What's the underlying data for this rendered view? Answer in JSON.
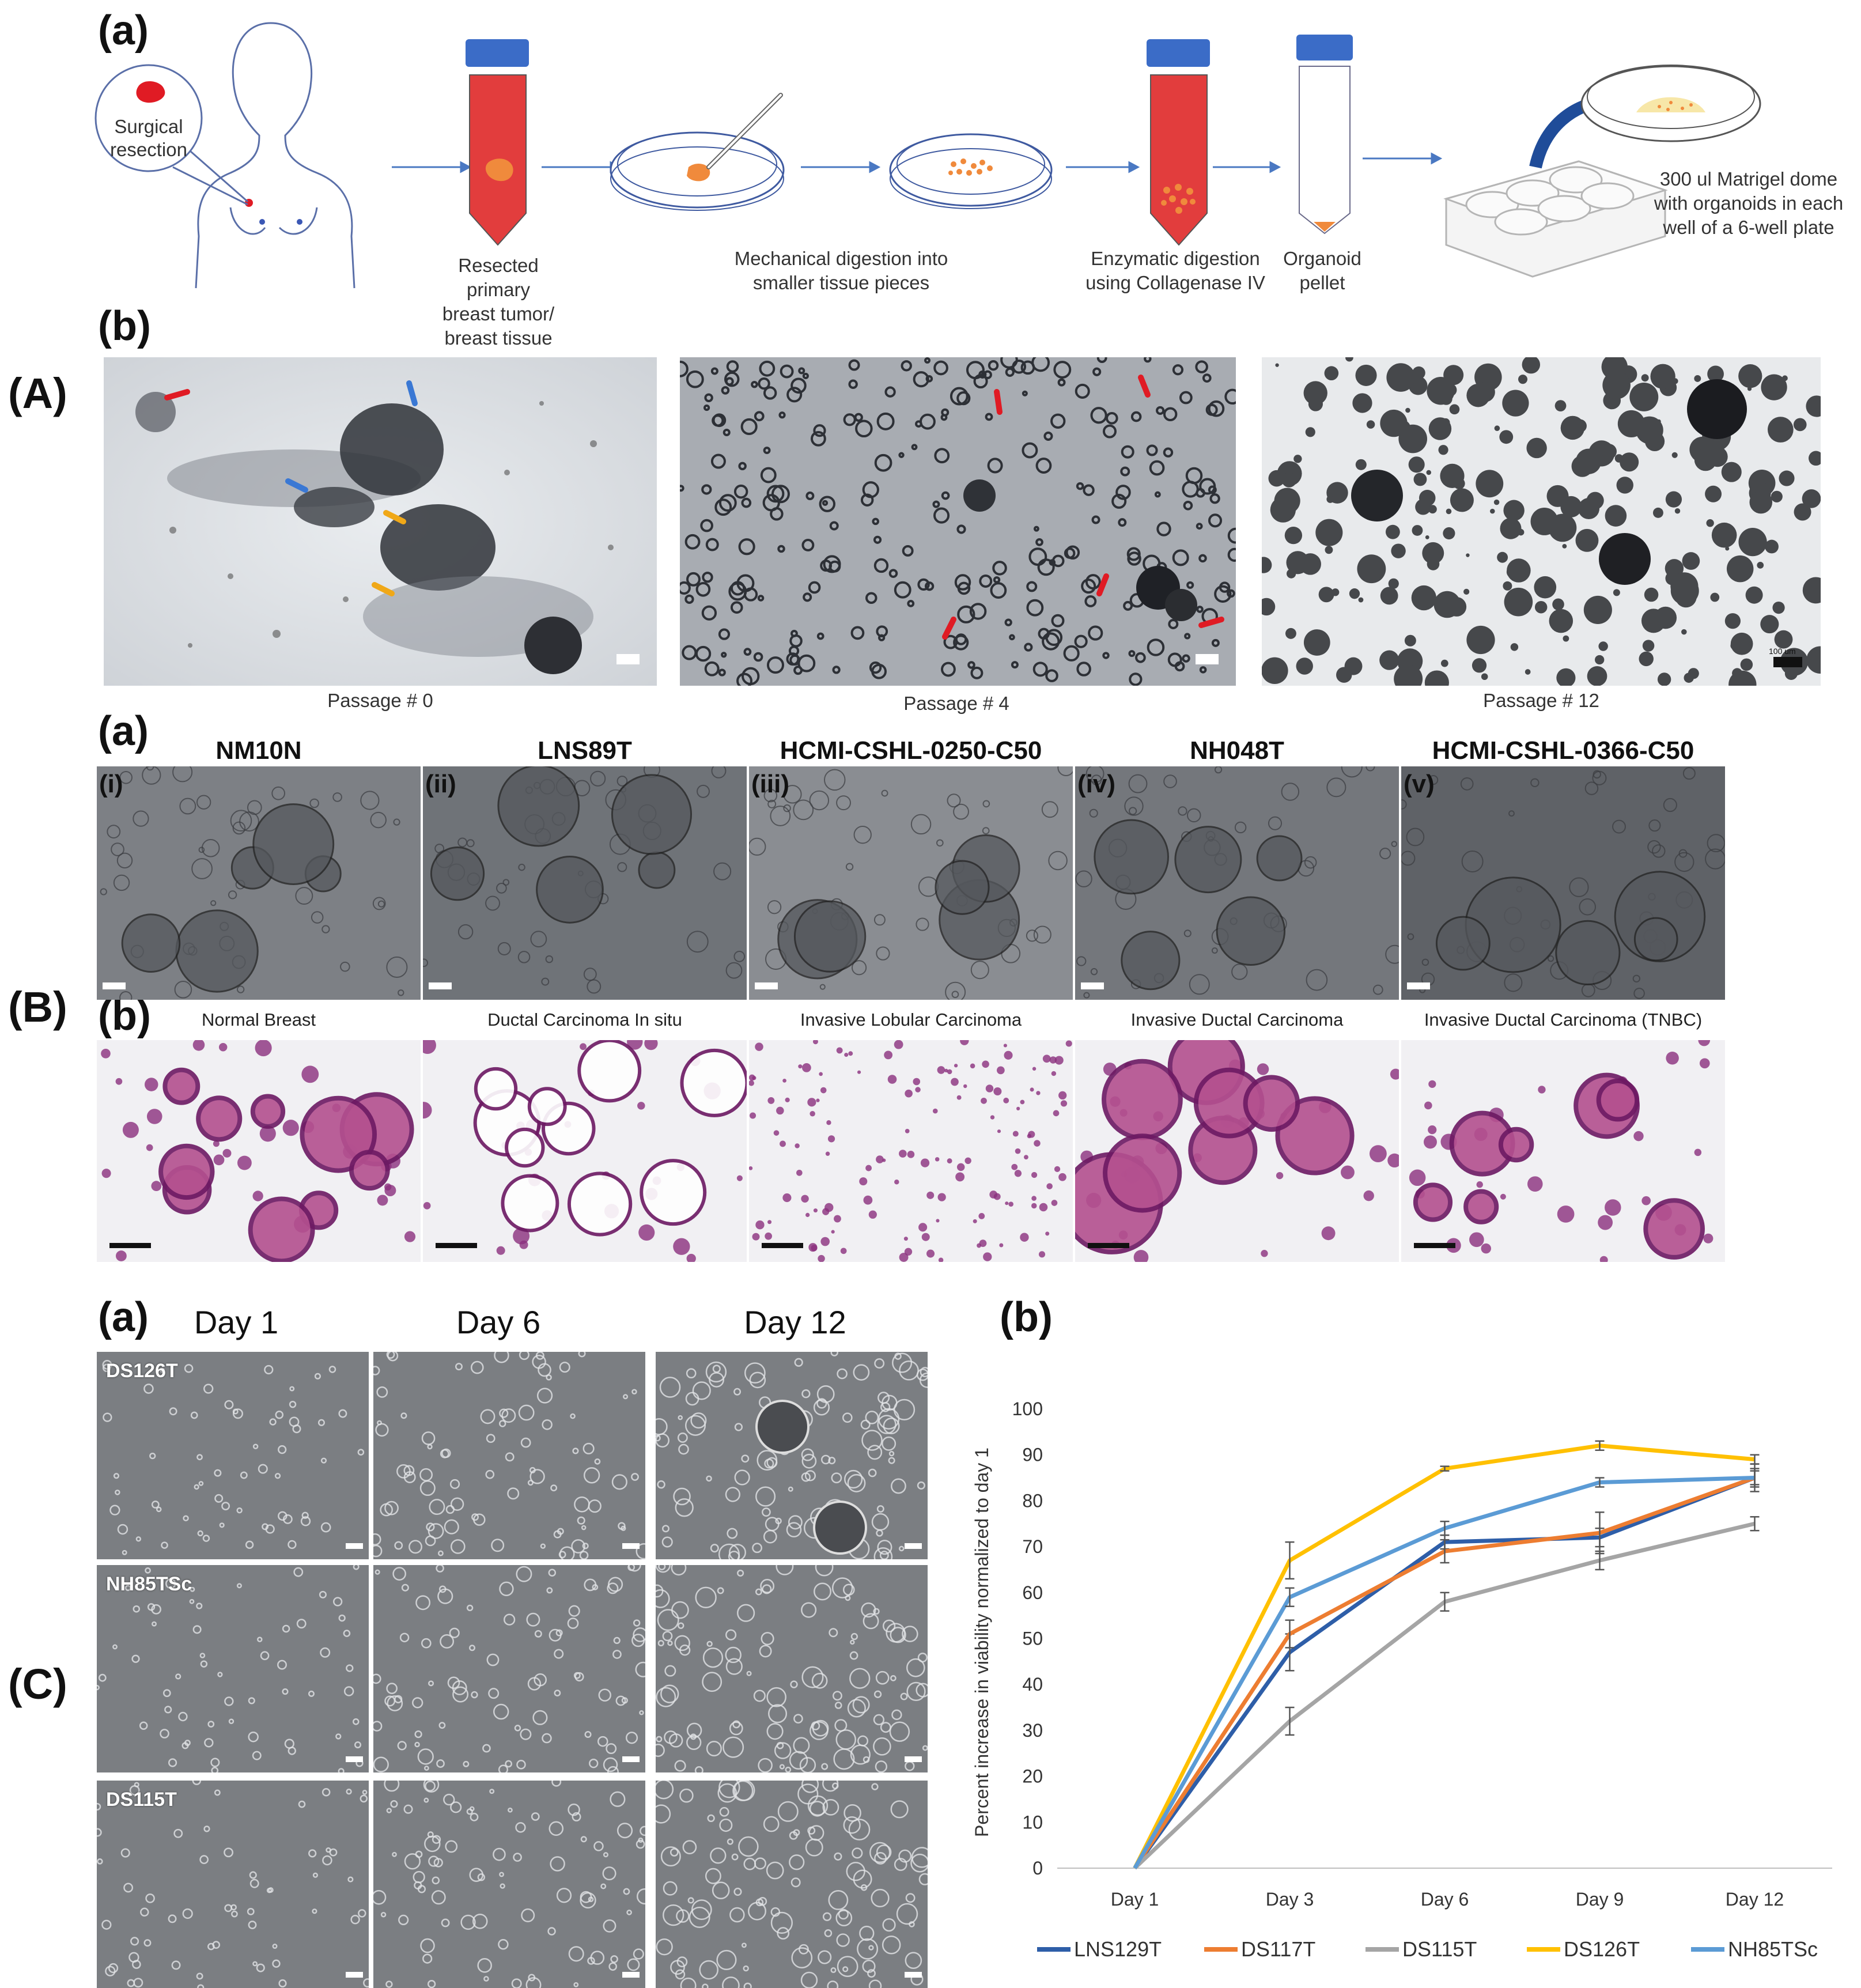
{
  "sectionA": {
    "letter": "(A)",
    "panel_a": {
      "letter": "(a)",
      "circle_text": "Surgical resection",
      "tube1_caption": [
        "Resected",
        "primary",
        "breast tumor/",
        "breast tissue"
      ],
      "mech_caption": [
        "Mechanical digestion into",
        "smaller tissue pieces"
      ],
      "enz_caption": [
        "Enzymatic digestion",
        "using Collagenase IV"
      ],
      "pellet_caption": [
        "Organoid",
        "pellet"
      ],
      "dome_caption": [
        "300 ul Matrigel dome",
        "with organoids in each",
        "well of a 6-well plate"
      ]
    },
    "panel_b": {
      "letter": "(b)",
      "captions": [
        "Passage # 0",
        "Passage # 4",
        "Passage # 12"
      ],
      "scale_text": "100 um"
    }
  },
  "sectionB": {
    "letter": "(B)",
    "panel_a_letter": "(a)",
    "panel_b_letter": "(b)",
    "columns": [
      {
        "roman": "(i)",
        "name": "NM10N",
        "tissue": "Normal Breast"
      },
      {
        "roman": "(ii)",
        "name": "LNS89T",
        "tissue": "Ductal Carcinoma In situ"
      },
      {
        "roman": "(iii)",
        "name": "HCMI-CSHL-0250-C50",
        "tissue": "Invasive Lobular Carcinoma"
      },
      {
        "roman": "(iv)",
        "name": "NH048T",
        "tissue": "Invasive Ductal Carcinoma"
      },
      {
        "roman": "(v)",
        "name": "HCMI-CSHL-0366-C50",
        "tissue": "Invasive Ductal Carcinoma (TNBC)"
      }
    ]
  },
  "sectionC": {
    "letter": "(C)",
    "panel_a_letter": "(a)",
    "panel_b_letter": "(b)",
    "days": [
      "Day 1",
      "Day 6",
      "Day 12"
    ],
    "rows": [
      "DS126T",
      "NH85TSc",
      "DS115T"
    ]
  },
  "chart_data": {
    "type": "line",
    "categories": [
      "Day 1",
      "Day 3",
      "Day 6",
      "Day 9",
      "Day 12"
    ],
    "ylabel": "Percent increase in viability normalized to day 1",
    "xlabel": "",
    "ylim": [
      0,
      100
    ],
    "yticks": [
      0,
      10,
      20,
      30,
      40,
      50,
      60,
      70,
      80,
      90,
      100
    ],
    "grid": false,
    "legend_position": "bottom",
    "series": [
      {
        "name": "LNS129T",
        "color": "#2e5ea8",
        "values": [
          0,
          47,
          71,
          72,
          85
        ],
        "errors": [
          0,
          4,
          1.5,
          2,
          2
        ]
      },
      {
        "name": "DS117T",
        "color": "#ed7d31",
        "values": [
          0,
          51,
          69,
          73,
          85
        ],
        "errors": [
          0,
          3,
          2.5,
          4.5,
          1.5
        ]
      },
      {
        "name": "DS115T",
        "color": "#a5a5a5",
        "values": [
          0,
          32,
          58,
          67,
          75
        ],
        "errors": [
          0,
          3,
          2,
          2,
          1.5
        ]
      },
      {
        "name": "DS126T",
        "color": "#ffc000",
        "values": [
          0,
          67,
          87,
          92,
          89
        ],
        "errors": [
          0,
          4,
          0.5,
          1,
          1
        ]
      },
      {
        "name": "NH85TSc",
        "color": "#5b9bd5",
        "values": [
          0,
          59,
          74,
          84,
          85
        ],
        "errors": [
          0,
          2,
          1.5,
          1,
          3
        ]
      }
    ]
  }
}
